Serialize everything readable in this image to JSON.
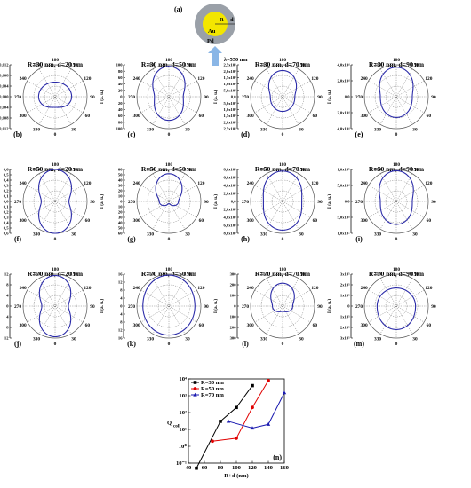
{
  "schematic": {
    "panel_label": "(a)",
    "r_label": "R",
    "d_label": "d",
    "core_label": "Au",
    "shell_label": "Pd",
    "wavelength_label": "λ=550 nm",
    "colors": {
      "shell": "#9aa0a8",
      "core": "#f3e600",
      "arrow": "#8ab6e6"
    }
  },
  "colors": {
    "curve": "#2a2aa8",
    "grid": "#555555",
    "bar": "#111111"
  },
  "chart_data": [
    {
      "type": "polar",
      "panel": "(b)",
      "title": "R=30 nm, d=20 nm",
      "R_nm": 30,
      "d_nm": 20,
      "radial_label": "I (a. u.)",
      "rmax": 0.012,
      "radial_ticks": [
        "0,012",
        "0,008",
        "0,004",
        "0,000",
        "0,004",
        "0,008",
        "0,012"
      ],
      "angle_labels": [
        "180",
        "150",
        "120",
        "90",
        "60",
        "30",
        "0",
        "330",
        "300",
        "270",
        "240",
        "210"
      ],
      "pattern": {
        "front": 0.004,
        "side": 0.0062,
        "back": 0.0055
      }
    },
    {
      "type": "polar",
      "panel": "(c)",
      "title": "R=30 nm, d=50 nm",
      "R_nm": 30,
      "d_nm": 50,
      "radial_label": "I (a. u.)",
      "rmax": 100,
      "radial_ticks": [
        "100",
        "80",
        "60",
        "40",
        "20",
        "0",
        "20",
        "40",
        "60",
        "80",
        "100"
      ],
      "angle_labels": [
        "180",
        "150",
        "120",
        "90",
        "60",
        "30",
        "0",
        "330",
        "300",
        "270",
        "240",
        "210"
      ],
      "pattern": {
        "front": 74,
        "side": 45,
        "back": 95
      }
    },
    {
      "type": "polar",
      "panel": "(d)",
      "title": "R=30 nm, d=70 nm",
      "R_nm": 30,
      "d_nm": 70,
      "radial_label": "I (a. u.)",
      "rmax": 2500.0,
      "radial_ticks": [
        "2,5x10³",
        "2,0x10³",
        "1,5x10³",
        "1,0x10³",
        "5,0x10²",
        "0,0",
        "5,0x10²",
        "1,0x10³",
        "1,5x10³",
        "2,0x10³",
        "2,5x10³"
      ],
      "angle_labels": [
        "180",
        "150",
        "120",
        "90",
        "60",
        "30",
        "0",
        "330",
        "300",
        "270",
        "240",
        "210"
      ],
      "pattern": {
        "front": 1150,
        "side": 960,
        "back": 2050
      }
    },
    {
      "type": "polar",
      "panel": "(e)",
      "title": "R=30 nm, d=90 nm",
      "R_nm": 30,
      "d_nm": 90,
      "radial_label": "I (a. u.)",
      "rmax": 40000.0,
      "radial_ticks": [
        "4,0x10⁴",
        "2,0x10⁴",
        "0,0",
        "2,0x10⁴",
        "4,0x10⁴"
      ],
      "angle_labels": [
        "180",
        "150",
        "120",
        "90",
        "60",
        "30",
        "0",
        "330",
        "300",
        "270",
        "240",
        "210"
      ],
      "pattern": {
        "front": 26000,
        "side": 20000,
        "back": 37000
      }
    },
    {
      "type": "polar",
      "panel": "(f)",
      "title": "R=50 nm, d=20 nm",
      "R_nm": 50,
      "d_nm": 20,
      "radial_label": "I (a. u.)",
      "rmax": 0.6,
      "radial_ticks": [
        "0,6",
        "0,5",
        "0,4",
        "0,3",
        "0,2",
        "0,1",
        "0,0",
        "0,1",
        "0,2",
        "0,3",
        "0,4",
        "0,5",
        "0,6"
      ],
      "angle_labels": [
        "180",
        "150",
        "120",
        "90",
        "60",
        "30",
        "0",
        "330",
        "300",
        "270",
        "240",
        "210"
      ],
      "pattern": {
        "front": 0.6,
        "side": 0.26,
        "back": 0.6
      }
    },
    {
      "type": "polar",
      "panel": "(g)",
      "title": "R=50 nm, d=50 nm",
      "R_nm": 50,
      "d_nm": 50,
      "radial_label": "I (a. u.)",
      "rmax": 60,
      "radial_ticks": [
        "60",
        "50",
        "40",
        "30",
        "20",
        "10",
        "0",
        "10",
        "20",
        "30",
        "40",
        "50",
        "60"
      ],
      "angle_labels": [
        "180",
        "150",
        "120",
        "90",
        "60",
        "30",
        "0",
        "330",
        "300",
        "270",
        "240",
        "210"
      ],
      "pattern": {
        "front": 4,
        "side": 18,
        "back": 52
      }
    },
    {
      "type": "polar",
      "panel": "(h)",
      "title": "R=50 nm, d=70 nm",
      "R_nm": 50,
      "d_nm": 70,
      "radial_label": "I (a. u.)",
      "rmax": 8000.0,
      "radial_ticks": [
        "8,0x10³",
        "6,0x10³",
        "4,0x10³",
        "2,0x10³",
        "0,0",
        "2,0x10³",
        "4,0x10³",
        "6,0x10³",
        "8,0x10³"
      ],
      "angle_labels": [
        "180",
        "150",
        "120",
        "90",
        "60",
        "30",
        "0",
        "330",
        "300",
        "270",
        "240",
        "210"
      ],
      "pattern": {
        "front": 7200,
        "side": 4800,
        "back": 7600
      }
    },
    {
      "type": "polar",
      "panel": "(i)",
      "title": "R=50 nm, d=90 nm",
      "R_nm": 50,
      "d_nm": 90,
      "radial_label": "I (a. u.)",
      "rmax": 100000.0,
      "radial_ticks": [
        "1,0x10⁵",
        "5,0x10⁴",
        "0,0",
        "5,0x10⁴",
        "1,0x10⁵"
      ],
      "angle_labels": [
        "180",
        "150",
        "120",
        "90",
        "60",
        "30",
        "0",
        "330",
        "300",
        "270",
        "240",
        "210"
      ],
      "pattern": {
        "front": 72000,
        "side": 50000,
        "back": 96000
      }
    },
    {
      "type": "polar",
      "panel": "(j)",
      "title": "R=70 nm, d=20 nm",
      "R_nm": 70,
      "d_nm": 20,
      "radial_label": "I (a. u.)",
      "rmax": 12,
      "radial_ticks": [
        "12",
        "8",
        "4",
        "0",
        "4",
        "8",
        "12"
      ],
      "angle_labels": [
        "180",
        "150",
        "120",
        "90",
        "60",
        "30",
        "0",
        "330",
        "300",
        "270",
        "240",
        "210"
      ],
      "pattern": {
        "front": 11.5,
        "side": 5,
        "back": 11.5
      }
    },
    {
      "type": "polar",
      "panel": "(k)",
      "title": "R=70 nm, d=50 nm",
      "R_nm": 70,
      "d_nm": 50,
      "radial_label": "I (a. u.)",
      "rmax": 16,
      "radial_ticks": [
        "16",
        "12",
        "8",
        "4",
        "0",
        "4",
        "8",
        "12",
        "16"
      ],
      "angle_labels": [
        "180",
        "150",
        "120",
        "90",
        "60",
        "30",
        "0",
        "330",
        "300",
        "270",
        "240",
        "210"
      ],
      "pattern": {
        "front": 14.5,
        "side": 13,
        "back": 15.5
      }
    },
    {
      "type": "polar",
      "panel": "(l)",
      "title": "R=70 nm, d=70 nm",
      "R_nm": 70,
      "d_nm": 70,
      "radial_label": "I (a. u.)",
      "rmax": 300,
      "radial_ticks": [
        "300",
        "200",
        "100",
        "0",
        "100",
        "200",
        "300"
      ],
      "angle_labels": [
        "180",
        "150",
        "120",
        "90",
        "60",
        "30",
        "0",
        "330",
        "300",
        "270",
        "240",
        "210"
      ],
      "pattern": {
        "front": 50,
        "side": 95,
        "back": 215
      }
    },
    {
      "type": "polar",
      "panel": "(m)",
      "title": "R=70 nm, d=90 nm",
      "R_nm": 70,
      "d_nm": 90,
      "radial_label": "I (a. u.)",
      "rmax": 3000.0,
      "radial_ticks": [
        "3x10³",
        "2x10³",
        "1x10³",
        "0",
        "1x10³",
        "2x10³",
        "3x10³"
      ],
      "angle_labels": [
        "180",
        "150",
        "120",
        "90",
        "60",
        "30",
        "0",
        "330",
        "300",
        "270",
        "240",
        "210"
      ],
      "pattern": {
        "front": 2200,
        "side": 1800,
        "back": 1700
      }
    },
    {
      "type": "line",
      "panel": "(n)",
      "scale": "log-y",
      "xlabel": "R+d (nm)",
      "ylabel": "Q",
      "ylabel_sub": "coll",
      "xlim": [
        40,
        160
      ],
      "ylim_exp": [
        -1,
        4
      ],
      "xticks": [
        "40",
        "60",
        "80",
        "100",
        "120",
        "140",
        "160"
      ],
      "yticks": [
        "10⁻¹",
        "10⁰",
        "10¹",
        "10²",
        "10³",
        "10⁴"
      ],
      "series": [
        {
          "name": "R=30 nm",
          "color": "#000000",
          "marker": "square",
          "x": [
            50,
            80,
            100,
            120
          ],
          "y": [
            0.05,
            30,
            200,
            4000
          ]
        },
        {
          "name": "R=50 nm",
          "color": "#e00000",
          "marker": "circle",
          "x": [
            70,
            100,
            120,
            140
          ],
          "y": [
            2,
            3,
            200,
            8000
          ]
        },
        {
          "name": "R=70 nm",
          "color": "#1a1ab0",
          "marker": "triangle",
          "x": [
            90,
            120,
            140,
            160
          ],
          "y": [
            30,
            12,
            20,
            1500
          ]
        }
      ]
    }
  ]
}
